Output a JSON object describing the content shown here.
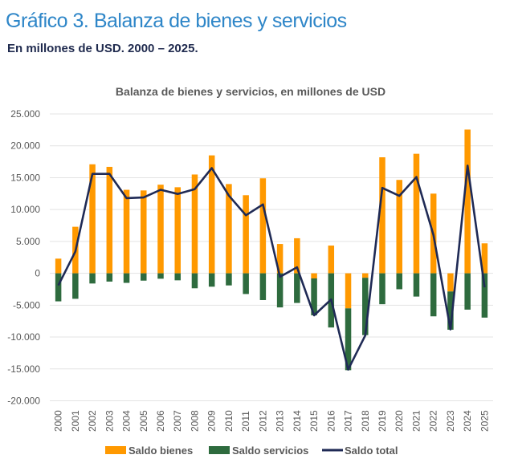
{
  "header": {
    "title": "Gráfico 3. Balanza de bienes y servicios",
    "subtitle": "En millones de USD. 2000 – 2025."
  },
  "colors": {
    "saldo_bienes": "#FF9900",
    "saldo_servicios": "#2E6B3E",
    "saldo_total": "#1F2A55",
    "title": "#2E86C8"
  },
  "chart_data": {
    "type": "bar",
    "subtype": "stacked bar with line overlay",
    "title": "Balanza de bienes y servicios, en millones de USD",
    "xlabel": "",
    "ylabel": "",
    "ylim": [
      -20000,
      25000
    ],
    "yticks": [
      25000,
      20000,
      15000,
      10000,
      5000,
      0,
      -5000,
      -10000,
      -15000,
      -20000
    ],
    "ytick_labels": [
      "25.000",
      "20.000",
      "15.000",
      "10.000",
      "5.000",
      "0",
      "-5.000",
      "-10.000",
      "-15.000",
      "-20.000"
    ],
    "grid": true,
    "legend_position": "bottom",
    "categories": [
      "2000",
      "2001",
      "2002",
      "2003",
      "2004",
      "2005",
      "2006",
      "2007",
      "2008",
      "2009",
      "2010",
      "2011",
      "2012",
      "2013",
      "2014",
      "2015",
      "2016",
      "2017",
      "2018",
      "2019",
      "2020",
      "2021",
      "2022",
      "2023",
      "2024",
      "2025"
    ],
    "series": [
      {
        "name": "Saldo bienes",
        "type": "bar",
        "values": [
          2300,
          7300,
          17100,
          16700,
          13100,
          13000,
          13900,
          13500,
          15500,
          18500,
          14000,
          12250,
          14900,
          4600,
          5500,
          -800,
          4350,
          -5500,
          -700,
          18200,
          14650,
          18750,
          12500,
          -2850,
          22550,
          4700
        ]
      },
      {
        "name": "Saldo servicios",
        "type": "bar",
        "values": [
          -4400,
          -4000,
          -1600,
          -1300,
          -1500,
          -1150,
          -850,
          -1100,
          -2350,
          -2100,
          -1900,
          -3250,
          -4200,
          -5350,
          -4650,
          -5800,
          -8500,
          -9700,
          -9000,
          -4850,
          -2500,
          -3650,
          -6750,
          -6000,
          -5700,
          -6950
        ]
      },
      {
        "name": "Saldo total",
        "type": "line",
        "values": [
          -1900,
          3400,
          15600,
          15600,
          11800,
          11900,
          13100,
          12450,
          13200,
          16500,
          12200,
          9100,
          10800,
          -550,
          950,
          -6600,
          -4100,
          -15100,
          -9750,
          13400,
          12150,
          15100,
          6000,
          -8800,
          16900,
          -2200
        ]
      }
    ]
  }
}
